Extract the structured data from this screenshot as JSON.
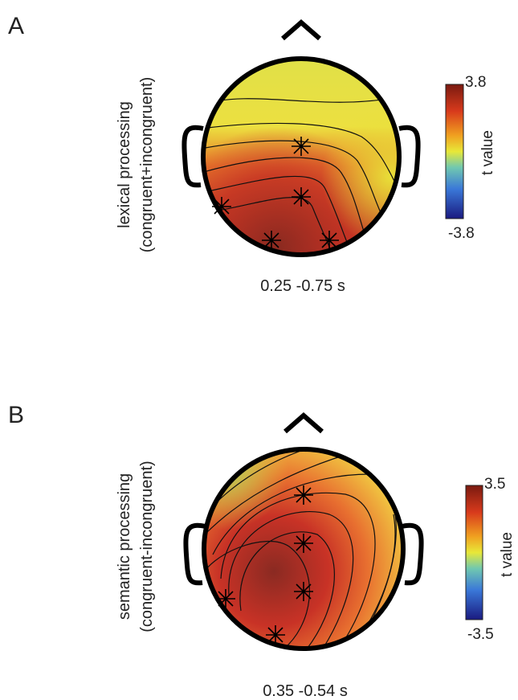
{
  "panels": [
    {
      "label": "A",
      "ylabel": [
        "lexical processing",
        "(congruent+incongruent)"
      ],
      "time": "0.25 -0.75 s",
      "colorbar": {
        "label": "t value",
        "max": 3.8,
        "min": -3.8
      }
    },
    {
      "label": "B",
      "ylabel": [
        "semantic processing",
        "(congruent-incongruent)"
      ],
      "time": "0.35 -0.54 s",
      "colorbar": {
        "label": "t value",
        "max": 3.5,
        "min": -3.5
      }
    }
  ]
}
